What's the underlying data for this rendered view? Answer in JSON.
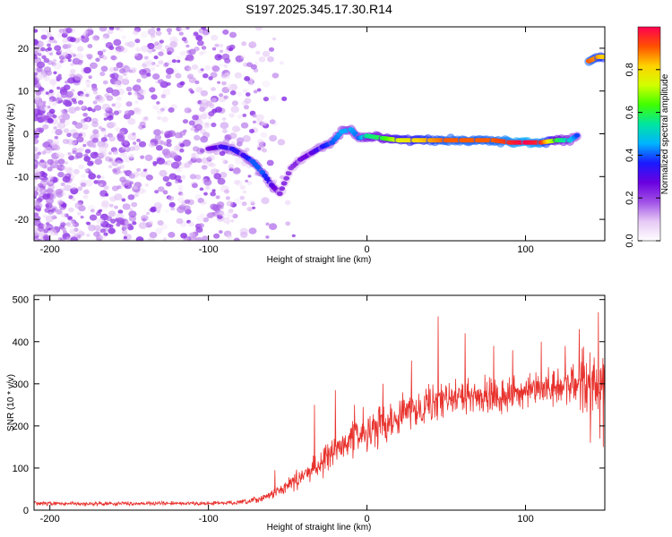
{
  "figure_title": "S197.2025.345.17.30.R14",
  "chart_data": [
    {
      "type": "heatmap",
      "title": "S197.2025.345.17.30.R14",
      "xlabel": "Height of straight line (km)",
      "ylabel": "Frequency (Hz)",
      "xlim": [
        -210,
        150
      ],
      "ylim": [
        -25,
        25
      ],
      "xticks": [
        -200,
        -100,
        0,
        100
      ],
      "yticks": [
        -20,
        -10,
        0,
        10,
        20
      ],
      "xtick_labels": [
        "-200",
        "-100",
        "0",
        "100"
      ],
      "ytick_labels": [
        "-20",
        "-10",
        "0",
        "10",
        "20"
      ],
      "colorbar": {
        "label": "Normalized spectral amplitude",
        "range": [
          0,
          1
        ],
        "ticks": [
          0,
          0.2,
          0.4,
          0.6,
          0.8
        ],
        "tick_labels": [
          "0.0",
          "0.2",
          "0.4",
          "0.6",
          "0.8"
        ],
        "colormap": [
          "#ffffff",
          "#e6c8f5",
          "#a050e6",
          "#6a00e0",
          "#1a1aff",
          "#00b4ff",
          "#00e6a0",
          "#40ff00",
          "#d2ff00",
          "#ffd200",
          "#ff5000",
          "#ff0050"
        ]
      },
      "noise_region": {
        "x_range": [
          -210,
          -70
        ],
        "freq_range": [
          -25,
          25
        ],
        "typical_amplitude": 0.12
      },
      "ridge": [
        {
          "x": -100,
          "freq": -3.5,
          "amp": 0.25
        },
        {
          "x": -92,
          "freq": -3.0,
          "amp": 0.32
        },
        {
          "x": -85,
          "freq": -3.5,
          "amp": 0.35
        },
        {
          "x": -78,
          "freq": -5.0,
          "amp": 0.32
        },
        {
          "x": -72,
          "freq": -6.5,
          "amp": 0.4
        },
        {
          "x": -66,
          "freq": -9.0,
          "amp": 0.4
        },
        {
          "x": -60,
          "freq": -12.0,
          "amp": 0.3
        },
        {
          "x": -55,
          "freq": -14.0,
          "amp": 0.22
        },
        {
          "x": -48,
          "freq": -8.0,
          "amp": 0.2
        },
        {
          "x": -42,
          "freq": -6.0,
          "amp": 0.25
        },
        {
          "x": -35,
          "freq": -4.5,
          "amp": 0.28
        },
        {
          "x": -28,
          "freq": -3.0,
          "amp": 0.35
        },
        {
          "x": -22,
          "freq": -2.0,
          "amp": 0.4
        },
        {
          "x": -16,
          "freq": 0.5,
          "amp": 0.45
        },
        {
          "x": -10,
          "freq": 1.0,
          "amp": 0.45
        },
        {
          "x": -5,
          "freq": -1.0,
          "amp": 0.4
        },
        {
          "x": 0,
          "freq": -0.5,
          "amp": 0.55
        },
        {
          "x": 10,
          "freq": -1.0,
          "amp": 0.6
        },
        {
          "x": 20,
          "freq": -1.5,
          "amp": 0.75
        },
        {
          "x": 30,
          "freq": -1.5,
          "amp": 0.8
        },
        {
          "x": 40,
          "freq": -1.5,
          "amp": 0.85
        },
        {
          "x": 50,
          "freq": -1.5,
          "amp": 0.9
        },
        {
          "x": 60,
          "freq": -1.5,
          "amp": 0.9
        },
        {
          "x": 70,
          "freq": -1.5,
          "amp": 0.9
        },
        {
          "x": 80,
          "freq": -1.5,
          "amp": 0.9
        },
        {
          "x": 90,
          "freq": -2.0,
          "amp": 0.95
        },
        {
          "x": 100,
          "freq": -2.0,
          "amp": 1.0
        },
        {
          "x": 110,
          "freq": -2.0,
          "amp": 0.95
        },
        {
          "x": 120,
          "freq": -1.5,
          "amp": 0.6
        },
        {
          "x": 128,
          "freq": -1.5,
          "amp": 0.5
        },
        {
          "x": 134,
          "freq": 0.0,
          "amp": 0.35
        }
      ],
      "upper_ridge": [
        {
          "x": 140,
          "freq": 17.0,
          "amp": 0.9
        },
        {
          "x": 146,
          "freq": 18.0,
          "amp": 0.85
        },
        {
          "x": 150,
          "freq": 18.0,
          "amp": 0.8
        }
      ]
    },
    {
      "type": "line",
      "xlabel": "Height of straight line (km)",
      "ylabel": "SNR (10 * v/v)",
      "xlim": [
        -210,
        150
      ],
      "ylim": [
        0,
        510
      ],
      "xticks": [
        -200,
        -100,
        0,
        100
      ],
      "yticks": [
        0,
        100,
        200,
        300,
        400,
        500
      ],
      "xtick_labels": [
        "-200",
        "-100",
        "0",
        "100"
      ],
      "ytick_labels": [
        "0",
        "100",
        "200",
        "300",
        "400",
        "500"
      ],
      "color": "#e8322d",
      "series": [
        {
          "name": "SNR",
          "x": [
            -210,
            -180,
            -150,
            -120,
            -100,
            -90,
            -80,
            -75,
            -70,
            -65,
            -60,
            -55,
            -50,
            -45,
            -40,
            -35,
            -30,
            -25,
            -20,
            -15,
            -10,
            -5,
            0,
            10,
            20,
            30,
            40,
            50,
            60,
            70,
            80,
            90,
            100,
            110,
            120,
            130,
            140,
            150
          ],
          "mean": [
            16,
            15,
            16,
            16,
            16,
            17,
            18,
            20,
            24,
            30,
            38,
            48,
            58,
            70,
            82,
            96,
            112,
            125,
            140,
            155,
            170,
            180,
            188,
            205,
            225,
            240,
            255,
            262,
            268,
            272,
            272,
            275,
            278,
            285,
            292,
            300,
            312,
            290
          ],
          "spread": [
            6,
            6,
            6,
            6,
            6,
            6,
            7,
            8,
            10,
            12,
            15,
            18,
            22,
            26,
            30,
            34,
            40,
            44,
            48,
            52,
            56,
            58,
            60,
            62,
            62,
            60,
            58,
            56,
            55,
            55,
            55,
            55,
            55,
            55,
            58,
            70,
            100,
            130
          ]
        }
      ],
      "peaks": [
        {
          "x": -58,
          "y": 95
        },
        {
          "x": -33,
          "y": 250
        },
        {
          "x": -20,
          "y": 285
        },
        {
          "x": -8,
          "y": 250
        },
        {
          "x": 10,
          "y": 300
        },
        {
          "x": 28,
          "y": 355
        },
        {
          "x": 45,
          "y": 460
        },
        {
          "x": 62,
          "y": 420
        },
        {
          "x": 80,
          "y": 390
        },
        {
          "x": 92,
          "y": 380
        },
        {
          "x": 110,
          "y": 400
        },
        {
          "x": 125,
          "y": 390
        },
        {
          "x": 134,
          "y": 430
        },
        {
          "x": 141,
          "y": 510
        },
        {
          "x": 146,
          "y": 470
        },
        {
          "x": 149,
          "y": 440
        }
      ],
      "troughs": [
        {
          "x": 141,
          "y": 160
        },
        {
          "x": 147,
          "y": 170
        },
        {
          "x": 149,
          "y": 150
        }
      ]
    }
  ]
}
